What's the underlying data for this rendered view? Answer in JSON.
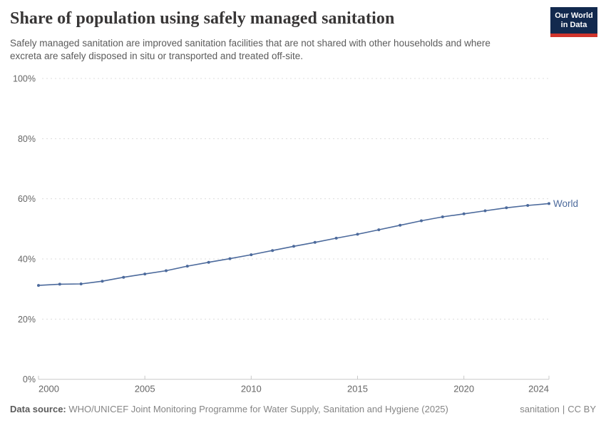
{
  "header": {
    "title": "Share of population using safely managed sanitation",
    "subtitle": "Safely managed sanitation are improved sanitation facilities that are not shared with other households and where excreta are safely disposed in situ or transported and treated off-site.",
    "logo": {
      "line1": "Our World",
      "line2": "in Data",
      "bg_color": "#12294e",
      "stripe_color": "#d0342c",
      "text_color": "#ffffff"
    }
  },
  "chart_data": {
    "type": "line",
    "title": "Share of population using safely managed sanitation",
    "xlabel": "",
    "ylabel": "",
    "xlim": [
      2000,
      2024
    ],
    "ylim": [
      0,
      100
    ],
    "grid": "horizontal-dashed",
    "legend_position": "end-of-line-label",
    "x_ticks": [
      2000,
      2005,
      2010,
      2015,
      2020,
      2024
    ],
    "y_ticks": [
      0,
      20,
      40,
      60,
      80,
      100
    ],
    "y_tick_suffix": "%",
    "series": [
      {
        "name": "World",
        "color": "#4c6a9c",
        "x": [
          2000,
          2001,
          2002,
          2003,
          2004,
          2005,
          2006,
          2007,
          2008,
          2009,
          2010,
          2011,
          2012,
          2013,
          2014,
          2015,
          2016,
          2017,
          2018,
          2019,
          2020,
          2021,
          2022,
          2023,
          2024
        ],
        "values": [
          31.2,
          31.6,
          31.7,
          32.6,
          33.9,
          35.0,
          36.1,
          37.6,
          38.9,
          40.1,
          41.4,
          42.8,
          44.2,
          45.5,
          46.9,
          48.2,
          49.7,
          51.2,
          52.7,
          54.0,
          55.0,
          56.0,
          57.0,
          57.8,
          58.4
        ]
      }
    ],
    "colors": {
      "gridline": "#dcdcdc",
      "axis": "#c8c8c8",
      "tick_text": "#666666"
    }
  },
  "footer": {
    "datasource_label": "Data source:",
    "datasource_text": "WHO/UNICEF Joint Monitoring Programme for Water Supply, Sanitation and Hygiene (2025)",
    "topic_link": "sanitation",
    "divider": "|",
    "license_link": "CC BY"
  }
}
